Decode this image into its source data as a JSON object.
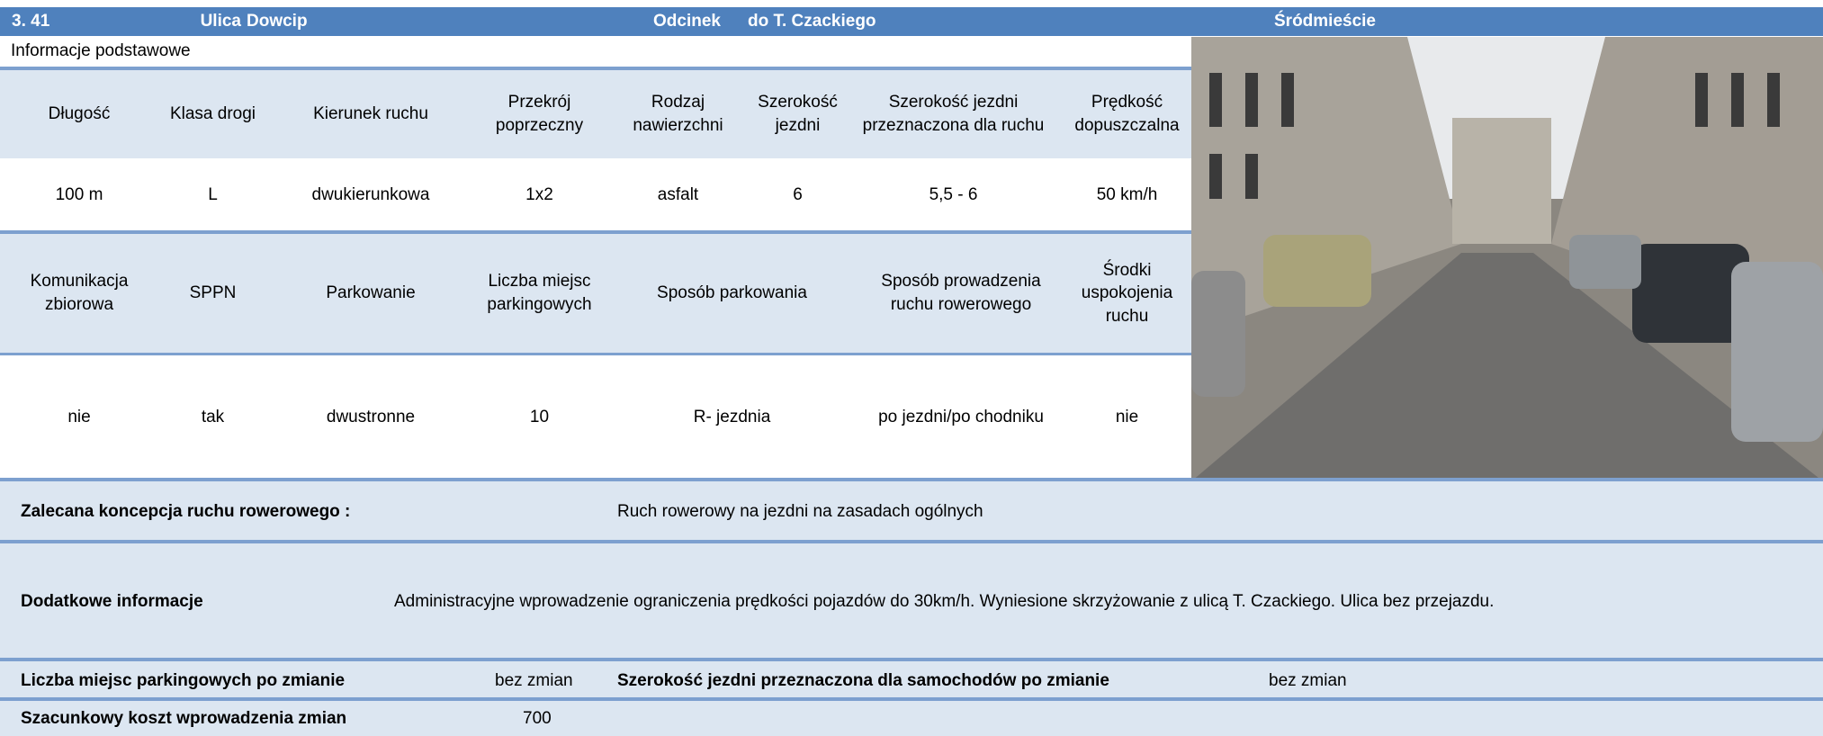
{
  "header": {
    "number": "3. 41",
    "street_label": "Ulica",
    "street": "Dowcip",
    "section_label": "Odcinek",
    "section": "do T. Czackiego",
    "district": "Śródmieście"
  },
  "section_title": "Informacje podstawowe",
  "table": {
    "rows": [
      [
        "Długość",
        "Klasa drogi",
        "Kierunek ruchu",
        "Przekrój poprzeczny",
        "Rodzaj nawierzchni",
        "Szerokość jezdni",
        "Szerokość jezdni przeznaczona dla ruchu",
        "Prędkość dopuszczalna"
      ],
      [
        "100 m",
        "L",
        "dwukierunkowa",
        "1x2",
        "asfalt",
        "6",
        "5,5 - 6",
        "50 km/h"
      ],
      [
        "Komunikacja zbiorowa",
        "SPPN",
        "Parkowanie",
        "Liczba miejsc parkingowych",
        "Sposób parkowania",
        "Sposób prowadzenia ruchu rowerowego",
        "Środki uspokojenia ruchu"
      ],
      [
        "nie",
        "tak",
        "dwustronne",
        "10",
        "R- jezdnia",
        "po jezdni/po chodniku",
        "nie"
      ]
    ]
  },
  "details": {
    "recommended_label": "Zalecana koncepcja ruchu rowerowego :",
    "recommended": "Ruch rowerowy na jezdni na zasadach ogólnych",
    "additional_label": "Dodatkowe informacje",
    "additional": "Administracyjne wprowadzenie ograniczenia prędkości pojazdów do 30km/h. Wyniesione skrzyżowanie z ulicą T. Czackiego. Ulica bez przejazdu.",
    "parking_after_label": "Liczba miejsc parkingowych po zmianie",
    "parking_after": "bez zmian",
    "width_after_label": "Szerokość jezdni przeznaczona dla samochodów po zmianie",
    "width_after": "bez zmian",
    "cost_label": "Szacunkowy koszt wprowadzenia zmian",
    "cost": "700"
  }
}
